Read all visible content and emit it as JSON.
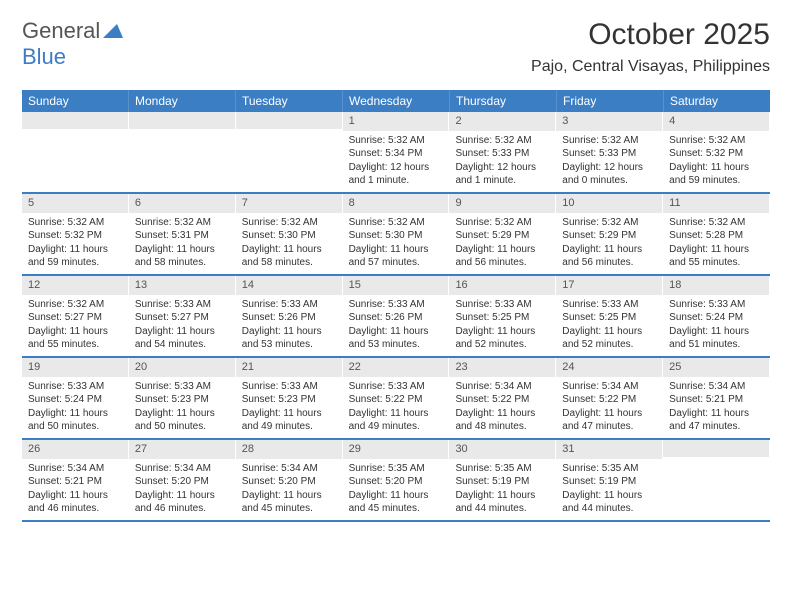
{
  "branding": {
    "word1": "General",
    "word2": "Blue"
  },
  "header": {
    "month_title": "October 2025",
    "location": "Pajo, Central Visayas, Philippines"
  },
  "colors": {
    "brand_blue": "#3b7ec4",
    "header_cell_bg": "#3b7ec4",
    "header_cell_text": "#ffffff",
    "day_number_bg": "#e9e9e9",
    "page_bg": "#ffffff",
    "text": "#333333"
  },
  "day_headers": [
    "Sunday",
    "Monday",
    "Tuesday",
    "Wednesday",
    "Thursday",
    "Friday",
    "Saturday"
  ],
  "weeks": [
    [
      {
        "empty": true
      },
      {
        "empty": true
      },
      {
        "empty": true
      },
      {
        "num": "1",
        "sunrise": "Sunrise: 5:32 AM",
        "sunset": "Sunset: 5:34 PM",
        "daylight": "Daylight: 12 hours and 1 minute."
      },
      {
        "num": "2",
        "sunrise": "Sunrise: 5:32 AM",
        "sunset": "Sunset: 5:33 PM",
        "daylight": "Daylight: 12 hours and 1 minute."
      },
      {
        "num": "3",
        "sunrise": "Sunrise: 5:32 AM",
        "sunset": "Sunset: 5:33 PM",
        "daylight": "Daylight: 12 hours and 0 minutes."
      },
      {
        "num": "4",
        "sunrise": "Sunrise: 5:32 AM",
        "sunset": "Sunset: 5:32 PM",
        "daylight": "Daylight: 11 hours and 59 minutes."
      }
    ],
    [
      {
        "num": "5",
        "sunrise": "Sunrise: 5:32 AM",
        "sunset": "Sunset: 5:32 PM",
        "daylight": "Daylight: 11 hours and 59 minutes."
      },
      {
        "num": "6",
        "sunrise": "Sunrise: 5:32 AM",
        "sunset": "Sunset: 5:31 PM",
        "daylight": "Daylight: 11 hours and 58 minutes."
      },
      {
        "num": "7",
        "sunrise": "Sunrise: 5:32 AM",
        "sunset": "Sunset: 5:30 PM",
        "daylight": "Daylight: 11 hours and 58 minutes."
      },
      {
        "num": "8",
        "sunrise": "Sunrise: 5:32 AM",
        "sunset": "Sunset: 5:30 PM",
        "daylight": "Daylight: 11 hours and 57 minutes."
      },
      {
        "num": "9",
        "sunrise": "Sunrise: 5:32 AM",
        "sunset": "Sunset: 5:29 PM",
        "daylight": "Daylight: 11 hours and 56 minutes."
      },
      {
        "num": "10",
        "sunrise": "Sunrise: 5:32 AM",
        "sunset": "Sunset: 5:29 PM",
        "daylight": "Daylight: 11 hours and 56 minutes."
      },
      {
        "num": "11",
        "sunrise": "Sunrise: 5:32 AM",
        "sunset": "Sunset: 5:28 PM",
        "daylight": "Daylight: 11 hours and 55 minutes."
      }
    ],
    [
      {
        "num": "12",
        "sunrise": "Sunrise: 5:32 AM",
        "sunset": "Sunset: 5:27 PM",
        "daylight": "Daylight: 11 hours and 55 minutes."
      },
      {
        "num": "13",
        "sunrise": "Sunrise: 5:33 AM",
        "sunset": "Sunset: 5:27 PM",
        "daylight": "Daylight: 11 hours and 54 minutes."
      },
      {
        "num": "14",
        "sunrise": "Sunrise: 5:33 AM",
        "sunset": "Sunset: 5:26 PM",
        "daylight": "Daylight: 11 hours and 53 minutes."
      },
      {
        "num": "15",
        "sunrise": "Sunrise: 5:33 AM",
        "sunset": "Sunset: 5:26 PM",
        "daylight": "Daylight: 11 hours and 53 minutes."
      },
      {
        "num": "16",
        "sunrise": "Sunrise: 5:33 AM",
        "sunset": "Sunset: 5:25 PM",
        "daylight": "Daylight: 11 hours and 52 minutes."
      },
      {
        "num": "17",
        "sunrise": "Sunrise: 5:33 AM",
        "sunset": "Sunset: 5:25 PM",
        "daylight": "Daylight: 11 hours and 52 minutes."
      },
      {
        "num": "18",
        "sunrise": "Sunrise: 5:33 AM",
        "sunset": "Sunset: 5:24 PM",
        "daylight": "Daylight: 11 hours and 51 minutes."
      }
    ],
    [
      {
        "num": "19",
        "sunrise": "Sunrise: 5:33 AM",
        "sunset": "Sunset: 5:24 PM",
        "daylight": "Daylight: 11 hours and 50 minutes."
      },
      {
        "num": "20",
        "sunrise": "Sunrise: 5:33 AM",
        "sunset": "Sunset: 5:23 PM",
        "daylight": "Daylight: 11 hours and 50 minutes."
      },
      {
        "num": "21",
        "sunrise": "Sunrise: 5:33 AM",
        "sunset": "Sunset: 5:23 PM",
        "daylight": "Daylight: 11 hours and 49 minutes."
      },
      {
        "num": "22",
        "sunrise": "Sunrise: 5:33 AM",
        "sunset": "Sunset: 5:22 PM",
        "daylight": "Daylight: 11 hours and 49 minutes."
      },
      {
        "num": "23",
        "sunrise": "Sunrise: 5:34 AM",
        "sunset": "Sunset: 5:22 PM",
        "daylight": "Daylight: 11 hours and 48 minutes."
      },
      {
        "num": "24",
        "sunrise": "Sunrise: 5:34 AM",
        "sunset": "Sunset: 5:22 PM",
        "daylight": "Daylight: 11 hours and 47 minutes."
      },
      {
        "num": "25",
        "sunrise": "Sunrise: 5:34 AM",
        "sunset": "Sunset: 5:21 PM",
        "daylight": "Daylight: 11 hours and 47 minutes."
      }
    ],
    [
      {
        "num": "26",
        "sunrise": "Sunrise: 5:34 AM",
        "sunset": "Sunset: 5:21 PM",
        "daylight": "Daylight: 11 hours and 46 minutes."
      },
      {
        "num": "27",
        "sunrise": "Sunrise: 5:34 AM",
        "sunset": "Sunset: 5:20 PM",
        "daylight": "Daylight: 11 hours and 46 minutes."
      },
      {
        "num": "28",
        "sunrise": "Sunrise: 5:34 AM",
        "sunset": "Sunset: 5:20 PM",
        "daylight": "Daylight: 11 hours and 45 minutes."
      },
      {
        "num": "29",
        "sunrise": "Sunrise: 5:35 AM",
        "sunset": "Sunset: 5:20 PM",
        "daylight": "Daylight: 11 hours and 45 minutes."
      },
      {
        "num": "30",
        "sunrise": "Sunrise: 5:35 AM",
        "sunset": "Sunset: 5:19 PM",
        "daylight": "Daylight: 11 hours and 44 minutes."
      },
      {
        "num": "31",
        "sunrise": "Sunrise: 5:35 AM",
        "sunset": "Sunset: 5:19 PM",
        "daylight": "Daylight: 11 hours and 44 minutes."
      },
      {
        "empty": true
      }
    ]
  ]
}
